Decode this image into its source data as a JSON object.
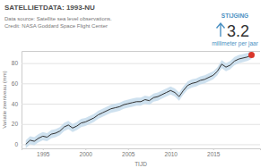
{
  "chart_data": {
    "type": "line",
    "title": "SATELLIETDATA: 1993-NU",
    "subtitle": [
      "Data source: Satellite sea level observations.",
      "Credit: NASA Goddard Space Flight Center"
    ],
    "x_label": "TIJD",
    "y_label": "Variatie zeeniveau (mm)",
    "annotation": {
      "label": "STIJGING",
      "value": 3.2,
      "unit": "millimeter per jaar"
    },
    "x": [
      1993.0,
      1993.5,
      1994.0,
      1994.5,
      1995.0,
      1995.5,
      1996.0,
      1996.5,
      1997.0,
      1997.5,
      1998.0,
      1998.5,
      1999.0,
      1999.5,
      2000.0,
      2000.5,
      2001.0,
      2001.5,
      2002.0,
      2002.5,
      2003.0,
      2003.5,
      2004.0,
      2004.5,
      2005.0,
      2005.5,
      2006.0,
      2006.5,
      2007.0,
      2007.5,
      2008.0,
      2008.5,
      2009.0,
      2009.5,
      2010.0,
      2010.5,
      2011.0,
      2011.5,
      2012.0,
      2012.5,
      2013.0,
      2013.5,
      2014.0,
      2014.5,
      2015.0,
      2015.5,
      2016.0,
      2016.5,
      2017.0,
      2017.5,
      2018.0,
      2018.5,
      2019.0,
      2019.5
    ],
    "series": [
      {
        "color": "#333333",
        "marker": "circle",
        "values": [
          0,
          4,
          3,
          6,
          8,
          7,
          10,
          11,
          13,
          17,
          19,
          16,
          18,
          21,
          22,
          24,
          26,
          29,
          31,
          33,
          35,
          36,
          37,
          39,
          40,
          41,
          42,
          42,
          44,
          43,
          46,
          47,
          49,
          51,
          53,
          51,
          47,
          53,
          58,
          60,
          61,
          63,
          64,
          66,
          68,
          72,
          79,
          76,
          78,
          82,
          84,
          85,
          86,
          88
        ],
        "error": [
          4,
          4,
          4,
          4,
          4,
          4,
          4,
          4,
          4,
          4,
          4,
          4,
          4,
          4,
          4,
          4,
          4,
          4,
          4,
          4,
          4,
          4,
          4,
          4,
          4,
          4,
          4,
          4,
          4,
          4,
          4,
          4,
          4,
          4,
          4,
          4,
          4,
          4,
          4,
          4,
          4,
          4,
          4,
          4,
          4,
          4,
          4,
          4,
          4,
          4,
          4,
          4,
          4,
          4
        ]
      }
    ],
    "xlim": [
      1992.5,
      2020.5
    ],
    "xticks": [
      1995,
      2000,
      2005,
      2010,
      2015
    ],
    "ylim": [
      -4,
      92
    ],
    "yticks": [
      0,
      20,
      40,
      60,
      80
    ],
    "grid": true
  }
}
